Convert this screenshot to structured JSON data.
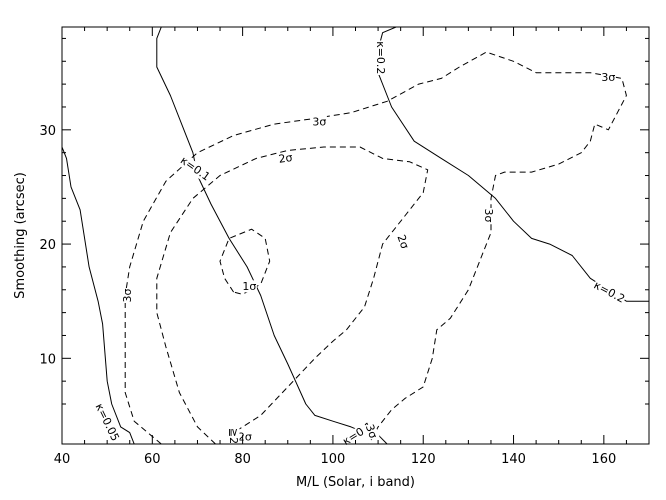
{
  "chart_data": {
    "type": "contour",
    "xlabel": "M/L (Solar, i band)",
    "ylabel": "Smoothing (arcsec)",
    "xlim": [
      40,
      170
    ],
    "ylim": [
      2.5,
      39
    ],
    "xticks": [
      40,
      60,
      80,
      100,
      120,
      140,
      160
    ],
    "yticks": [
      10,
      20,
      30
    ],
    "grid": false,
    "series": [
      {
        "name": "κ=0.05",
        "style": "solid",
        "points": [
          [
            40,
            28.5
          ],
          [
            41,
            27.5
          ],
          [
            42,
            25
          ],
          [
            44,
            23
          ],
          [
            46,
            18
          ],
          [
            48,
            15
          ],
          [
            49,
            13
          ],
          [
            50,
            8
          ],
          [
            51,
            6
          ],
          [
            53,
            4
          ],
          [
            55,
            3.5
          ],
          [
            56,
            2.5
          ]
        ]
      },
      {
        "name": "κ=0.1",
        "style": "solid",
        "points": [
          [
            62,
            39
          ],
          [
            61,
            38
          ],
          [
            61,
            37
          ],
          [
            61,
            35.5
          ],
          [
            64,
            33
          ],
          [
            67,
            30
          ],
          [
            69,
            28
          ],
          [
            70,
            26
          ],
          [
            73,
            23.5
          ],
          [
            77,
            20.5
          ],
          [
            81,
            18
          ],
          [
            84,
            15.5
          ],
          [
            87,
            12
          ],
          [
            90,
            9.5
          ],
          [
            94,
            6
          ],
          [
            96,
            5
          ],
          [
            100,
            4.5
          ],
          [
            104,
            4
          ],
          [
            107,
            3.5
          ],
          [
            109,
            3.7
          ],
          [
            112,
            2.5
          ]
        ]
      },
      {
        "name": "κ=0.2",
        "style": "solid",
        "points": [
          [
            114,
            39
          ],
          [
            111,
            38.5
          ],
          [
            110,
            37
          ],
          [
            110,
            35
          ],
          [
            113,
            32
          ],
          [
            118,
            29
          ],
          [
            124,
            27.5
          ],
          [
            130,
            26
          ],
          [
            136,
            24
          ],
          [
            140,
            22
          ],
          [
            144,
            20.5
          ],
          [
            148,
            20
          ],
          [
            153,
            19
          ],
          [
            157,
            17
          ],
          [
            161,
            16
          ],
          [
            165,
            15
          ],
          [
            170,
            15
          ]
        ]
      },
      {
        "name": "1σ",
        "style": "dashed",
        "points": [
          [
            78,
            15.8
          ],
          [
            76,
            17
          ],
          [
            75,
            18.5
          ],
          [
            77,
            20.5
          ],
          [
            82,
            21.3
          ],
          [
            85,
            20.5
          ],
          [
            86,
            18.5
          ],
          [
            84,
            16.5
          ],
          [
            80,
            15.6
          ],
          [
            78,
            15.8
          ]
        ]
      },
      {
        "name": "2σ",
        "style": "dashed",
        "points": [
          [
            74,
            2.5
          ],
          [
            70,
            4
          ],
          [
            66,
            7
          ],
          [
            63,
            11
          ],
          [
            61,
            14
          ],
          [
            61,
            17
          ],
          [
            64,
            21
          ],
          [
            69,
            24
          ],
          [
            75,
            26
          ],
          [
            83,
            27.5
          ],
          [
            90,
            28.2
          ],
          [
            98,
            28.5
          ],
          [
            106,
            28.5
          ],
          [
            111,
            27.5
          ],
          [
            117,
            27.2
          ],
          [
            121,
            26.5
          ],
          [
            120,
            24.5
          ],
          [
            116,
            22.5
          ],
          [
            111,
            20
          ],
          [
            109,
            17
          ],
          [
            107,
            14.5
          ],
          [
            103,
            12.5
          ],
          [
            100,
            11.5
          ],
          [
            96,
            10
          ],
          [
            90,
            7.5
          ],
          [
            84,
            5
          ],
          [
            80,
            4
          ],
          [
            76,
            3
          ]
        ]
      },
      {
        "name": "3σ",
        "style": "dashed",
        "points": [
          [
            62,
            2.5
          ],
          [
            56,
            4.5
          ],
          [
            54,
            7
          ],
          [
            54,
            11
          ],
          [
            54,
            15.5
          ],
          [
            55,
            18
          ],
          [
            58,
            22
          ],
          [
            63,
            25.5
          ],
          [
            70,
            28
          ],
          [
            78,
            29.5
          ],
          [
            87,
            30.5
          ],
          [
            96,
            31
          ],
          [
            104,
            31.5
          ],
          [
            112,
            32.5
          ],
          [
            119,
            34
          ],
          [
            124,
            34.5
          ],
          [
            128,
            35.5
          ],
          [
            134,
            36.8
          ],
          [
            140,
            36
          ],
          [
            145,
            35
          ],
          [
            152,
            35
          ],
          [
            157,
            35
          ],
          [
            164,
            34.5
          ],
          [
            165,
            33
          ],
          [
            163,
            31.5
          ],
          [
            161,
            30
          ],
          [
            158,
            30.5
          ],
          [
            157,
            29
          ],
          [
            155,
            28
          ],
          [
            150,
            27
          ],
          [
            144,
            26.3
          ],
          [
            138,
            26.3
          ],
          [
            136,
            26
          ],
          [
            135,
            24
          ],
          [
            135,
            21
          ],
          [
            133,
            19
          ],
          [
            130,
            16
          ],
          [
            126,
            13.5
          ],
          [
            123,
            12.5
          ],
          [
            122,
            10
          ],
          [
            120,
            7.5
          ],
          [
            116,
            6.5
          ],
          [
            113,
            5.5
          ],
          [
            110,
            4
          ],
          [
            108,
            2.5
          ]
        ]
      }
    ],
    "labels": [
      {
        "text": "κ=0.05",
        "x": 50,
        "y": 4.4,
        "rotate": 64
      },
      {
        "text": "κ=0.1",
        "x": 69.5,
        "y": 26.6,
        "rotate": 35
      },
      {
        "text": "κ=0.1",
        "x": 105.5,
        "y": 3.4,
        "rotate": -32
      },
      {
        "text": "κ=0.2",
        "x": 110.5,
        "y": 36.3,
        "rotate": 90
      },
      {
        "text": "κ=0.2",
        "x": 161.2,
        "y": 15.8,
        "rotate": 28
      },
      {
        "text": "1σ",
        "x": 81.5,
        "y": 16.3,
        "rotate": 0
      },
      {
        "text": "2σ",
        "x": 89.5,
        "y": 27.5,
        "rotate": -8
      },
      {
        "text": "2σ",
        "x": 115.5,
        "y": 20.2,
        "rotate": 70
      },
      {
        "text": "2σ",
        "x": 80.5,
        "y": 3.1,
        "rotate": 0
      },
      {
        "text": "3σ",
        "x": 54.5,
        "y": 15.5,
        "rotate": -90
      },
      {
        "text": "3σ",
        "x": 97,
        "y": 30.7,
        "rotate": 0
      },
      {
        "text": "3σ",
        "x": 161,
        "y": 34.6,
        "rotate": 0
      },
      {
        "text": "3σ",
        "x": 134.5,
        "y": 22.5,
        "rotate": 90
      },
      {
        "text": "3σ",
        "x": 108.5,
        "y": 3.6,
        "rotate": 70
      },
      {
        "text": "≧2",
        "x": 78,
        "y": 3.2,
        "rotate": 90
      }
    ]
  }
}
